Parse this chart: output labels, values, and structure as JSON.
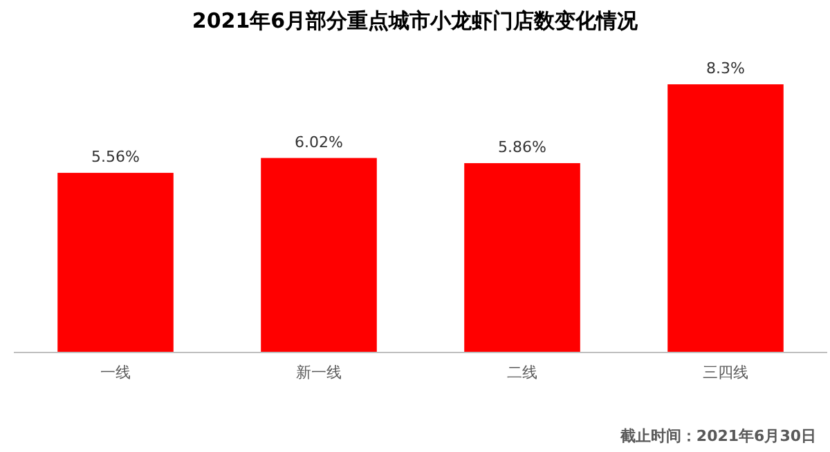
{
  "chart_data": {
    "type": "bar",
    "title": "2021年6月部分重点城市小龙虾门店数变化情况",
    "categories": [
      "一线",
      "新一线",
      "二线",
      "三四线"
    ],
    "values": [
      5.56,
      6.02,
      5.86,
      8.3
    ],
    "value_labels": [
      "5.56%",
      "6.02%",
      "5.86%",
      "8.3%"
    ],
    "color": "#ff0000",
    "annotations": [
      "截止时间：2021年6月30日"
    ]
  }
}
